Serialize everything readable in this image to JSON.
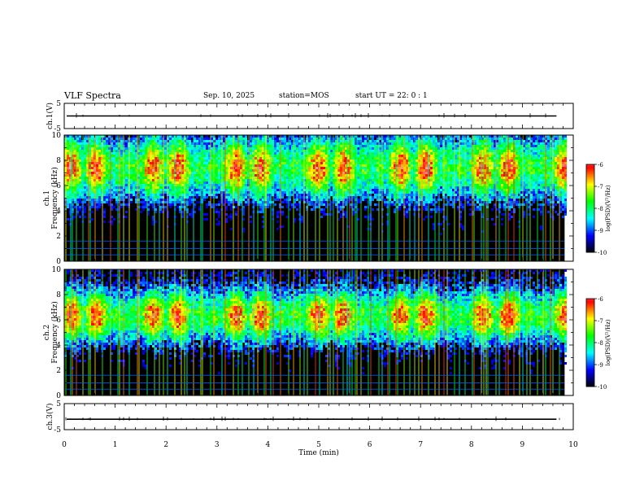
{
  "header": {
    "title": "VLF Spectra",
    "date": "Sep. 10, 2025",
    "station": "station=MOS",
    "start": "start UT =  22: 0  : 1"
  },
  "chart_data": {
    "type": "heatmap",
    "title": "VLF Spectra",
    "xlabel": "Time (min)",
    "xlim": [
      0,
      10
    ],
    "x_ticks": [
      "0",
      "1",
      "2",
      "3",
      "4",
      "5",
      "6",
      "7",
      "8",
      "9",
      "10"
    ],
    "data_end_min": 9.83,
    "panels": [
      {
        "id": "ch1-waveform",
        "kind": "waveform",
        "ylabel": "ch.1(V)",
        "ylim": [
          -5,
          5
        ],
        "y_ticks": [
          "5",
          "-5"
        ],
        "baseline": 0
      },
      {
        "id": "ch1-spectrogram",
        "kind": "spectrogram",
        "ylabel_line1": "ch.1",
        "ylabel_line2": "Frequency (kHz)",
        "ylim": [
          0,
          10
        ],
        "y_ticks": [
          "10",
          "8",
          "6",
          "4",
          "2",
          "0"
        ],
        "center_khz": 7.5,
        "spread_khz": 2.4,
        "floor_khz": 3.5,
        "colorbar": {
          "label": "log(PSD)(V²/Hz)",
          "range": [
            -10,
            -6
          ],
          "ticks": [
            "-6",
            "-7",
            "-8",
            "-9",
            "-10"
          ]
        }
      },
      {
        "id": "ch2-spectrogram",
        "kind": "spectrogram",
        "ylabel_line1": "ch.2",
        "ylabel_line2": "Frequency (kHz)",
        "ylim": [
          0,
          10
        ],
        "y_ticks": [
          "10",
          "8",
          "6",
          "4",
          "2",
          "0"
        ],
        "center_khz": 6.4,
        "spread_khz": 2.1,
        "floor_khz": 3.0,
        "colorbar": {
          "label": "log(PSD)(V²/Hz)",
          "range": [
            -10,
            -6
          ],
          "ticks": [
            "-6",
            "-7",
            "-8",
            "-9",
            "-10"
          ]
        }
      },
      {
        "id": "ch3-waveform",
        "kind": "waveform",
        "ylabel": "ch.3(V)",
        "ylim": [
          -5,
          5
        ],
        "y_ticks": [
          "5",
          "-5"
        ],
        "baseline": -1
      }
    ],
    "colormap": [
      "#000000",
      "#0000ff",
      "#00ffff",
      "#00ff00",
      "#ffff00",
      "#ff0000",
      "#ffffff"
    ]
  }
}
